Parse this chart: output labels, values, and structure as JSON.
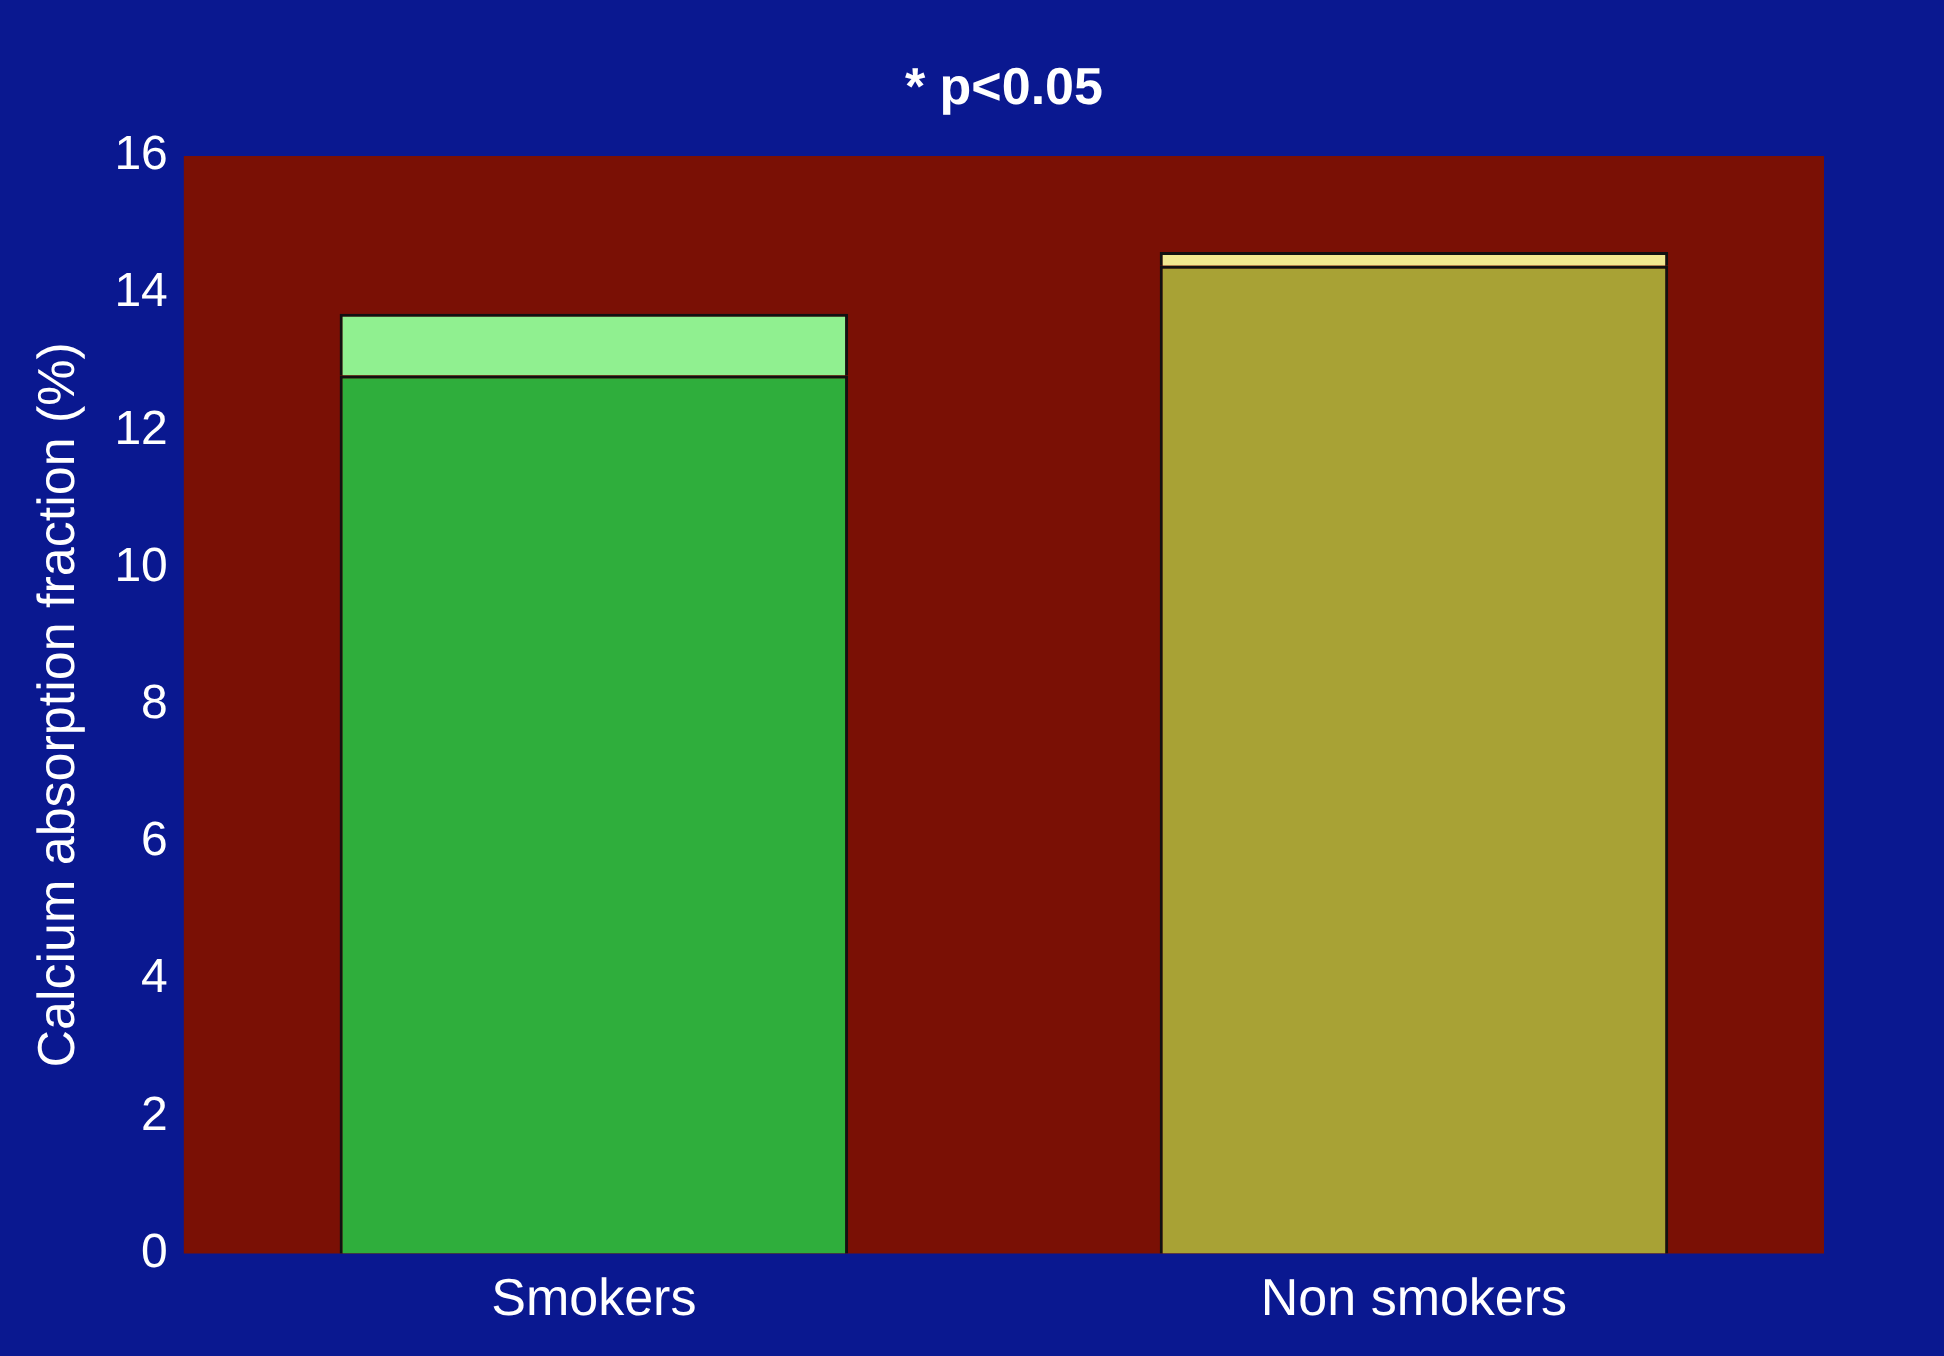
{
  "chart_data": {
    "type": "bar",
    "stacked": true,
    "ylabel": "Calcium absorption fraction (%)",
    "annotations": [
      "* p<0.05"
    ],
    "categories": [
      "Smokers",
      "Non smokers"
    ],
    "series": [
      {
        "colors": [
          "#2fae3c",
          "#a8a235"
        ],
        "values": [
          12.8,
          14.4
        ]
      },
      {
        "colors": [
          "#90f090",
          "#f0e890"
        ],
        "values": [
          0.9,
          0.2
        ]
      }
    ],
    "ylim": [
      0,
      16
    ],
    "yticks": [
      0,
      2,
      4,
      6,
      8,
      10,
      12,
      14,
      16
    ],
    "grid": false,
    "legend": false
  }
}
